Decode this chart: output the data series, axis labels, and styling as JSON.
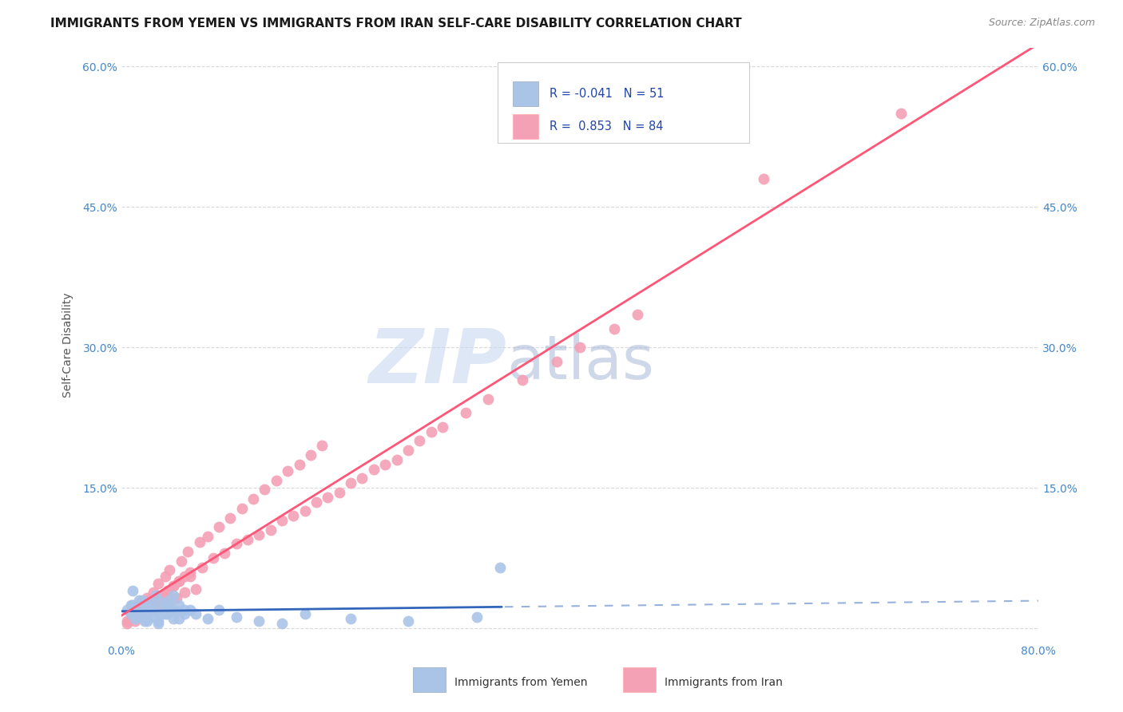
{
  "title": "IMMIGRANTS FROM YEMEN VS IMMIGRANTS FROM IRAN SELF-CARE DISABILITY CORRELATION CHART",
  "source": "Source: ZipAtlas.com",
  "ylabel": "Self-Care Disability",
  "xlim": [
    0.0,
    0.8
  ],
  "ylim": [
    -0.015,
    0.62
  ],
  "yticks": [
    0.0,
    0.15,
    0.3,
    0.45,
    0.6
  ],
  "ytick_labels_left": [
    "",
    "15.0%",
    "30.0%",
    "45.0%",
    "60.0%"
  ],
  "ytick_labels_right": [
    "",
    "15.0%",
    "30.0%",
    "45.0%",
    "60.0%"
  ],
  "xticks": [
    0.0,
    0.2,
    0.4,
    0.6,
    0.8
  ],
  "xtick_labels": [
    "0.0%",
    "",
    "",
    "",
    "80.0%"
  ],
  "background_color": "#ffffff",
  "grid_color": "#d0d0d0",
  "yemen_color": "#aac4e8",
  "iran_color": "#f4a0b5",
  "yemen_line_color": "#3366bb",
  "iran_line_color": "#ff5577",
  "legend_R_yemen": "-0.041",
  "legend_N_yemen": "51",
  "legend_R_iran": "0.853",
  "legend_N_iran": "84",
  "watermark_zip": "ZIP",
  "watermark_atlas": "atlas",
  "watermark_color_zip": "#c8d8f0",
  "watermark_color_atlas": "#a8b8d8",
  "yemen_scatter_x": [
    0.005,
    0.008,
    0.01,
    0.012,
    0.015,
    0.018,
    0.02,
    0.022,
    0.025,
    0.028,
    0.03,
    0.032,
    0.035,
    0.038,
    0.04,
    0.042,
    0.045,
    0.048,
    0.05,
    0.055,
    0.01,
    0.015,
    0.02,
    0.025,
    0.03,
    0.035,
    0.04,
    0.045,
    0.05,
    0.06,
    0.008,
    0.012,
    0.018,
    0.022,
    0.028,
    0.032,
    0.038,
    0.042,
    0.048,
    0.055,
    0.065,
    0.075,
    0.085,
    0.1,
    0.12,
    0.14,
    0.16,
    0.2,
    0.25,
    0.31,
    0.33
  ],
  "yemen_scatter_y": [
    0.02,
    0.015,
    0.025,
    0.01,
    0.03,
    0.018,
    0.022,
    0.008,
    0.028,
    0.012,
    0.035,
    0.005,
    0.015,
    0.025,
    0.02,
    0.03,
    0.01,
    0.018,
    0.025,
    0.015,
    0.04,
    0.012,
    0.008,
    0.022,
    0.018,
    0.028,
    0.015,
    0.035,
    0.01,
    0.02,
    0.025,
    0.018,
    0.03,
    0.012,
    0.022,
    0.008,
    0.015,
    0.025,
    0.018,
    0.02,
    0.015,
    0.01,
    0.02,
    0.012,
    0.008,
    0.005,
    0.015,
    0.01,
    0.008,
    0.012,
    0.065
  ],
  "iran_scatter_x": [
    0.005,
    0.008,
    0.01,
    0.012,
    0.015,
    0.018,
    0.02,
    0.025,
    0.028,
    0.03,
    0.035,
    0.038,
    0.04,
    0.042,
    0.045,
    0.048,
    0.05,
    0.055,
    0.06,
    0.065,
    0.01,
    0.015,
    0.02,
    0.025,
    0.03,
    0.035,
    0.04,
    0.045,
    0.05,
    0.055,
    0.06,
    0.07,
    0.08,
    0.09,
    0.1,
    0.11,
    0.12,
    0.13,
    0.14,
    0.15,
    0.16,
    0.17,
    0.18,
    0.19,
    0.2,
    0.21,
    0.22,
    0.23,
    0.24,
    0.25,
    0.26,
    0.27,
    0.28,
    0.3,
    0.32,
    0.35,
    0.38,
    0.4,
    0.43,
    0.45,
    0.005,
    0.012,
    0.018,
    0.022,
    0.028,
    0.032,
    0.038,
    0.042,
    0.052,
    0.058,
    0.068,
    0.075,
    0.085,
    0.095,
    0.105,
    0.115,
    0.125,
    0.135,
    0.145,
    0.155,
    0.165,
    0.175,
    0.56,
    0.68
  ],
  "iran_scatter_y": [
    0.005,
    0.01,
    0.015,
    0.008,
    0.02,
    0.012,
    0.025,
    0.018,
    0.03,
    0.022,
    0.035,
    0.025,
    0.04,
    0.028,
    0.045,
    0.032,
    0.05,
    0.038,
    0.055,
    0.042,
    0.012,
    0.018,
    0.022,
    0.03,
    0.025,
    0.035,
    0.04,
    0.045,
    0.05,
    0.055,
    0.06,
    0.065,
    0.075,
    0.08,
    0.09,
    0.095,
    0.1,
    0.105,
    0.115,
    0.12,
    0.125,
    0.135,
    0.14,
    0.145,
    0.155,
    0.16,
    0.17,
    0.175,
    0.18,
    0.19,
    0.2,
    0.21,
    0.215,
    0.23,
    0.245,
    0.265,
    0.285,
    0.3,
    0.32,
    0.335,
    0.008,
    0.015,
    0.025,
    0.032,
    0.038,
    0.048,
    0.055,
    0.062,
    0.072,
    0.082,
    0.092,
    0.098,
    0.108,
    0.118,
    0.128,
    0.138,
    0.148,
    0.158,
    0.168,
    0.175,
    0.185,
    0.195,
    0.48,
    0.55
  ],
  "title_fontsize": 11,
  "axis_label_fontsize": 10,
  "tick_fontsize": 10,
  "source_fontsize": 9
}
